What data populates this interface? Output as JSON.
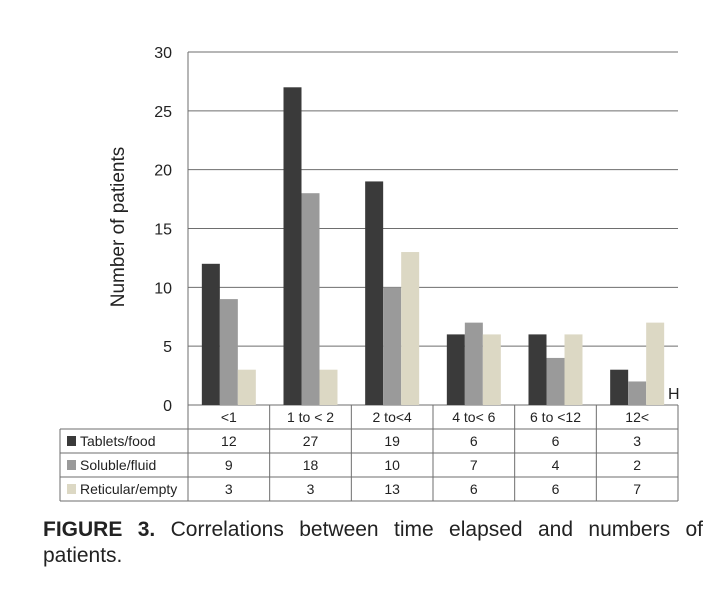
{
  "chart_data": {
    "type": "bar",
    "categories": [
      "<1",
      "1 to < 2",
      "2 to<4",
      "4 to< 6",
      "6 to <12",
      "12<"
    ],
    "series": [
      {
        "name": "Tablets/food",
        "values": [
          12,
          27,
          19,
          6,
          6,
          3
        ],
        "color": "#3a3a3a"
      },
      {
        "name": "Soluble/fluid",
        "values": [
          9,
          18,
          10,
          7,
          4,
          2
        ],
        "color": "#9a9a9a"
      },
      {
        "name": "Reticular/empty",
        "values": [
          3,
          3,
          13,
          6,
          6,
          7
        ],
        "color": "#dcd8c4"
      }
    ],
    "title": "",
    "xlabel": "H",
    "ylabel": "Number of patients",
    "ylim": [
      0,
      30
    ],
    "yticks": [
      0,
      5,
      10,
      15,
      20,
      25,
      30
    ],
    "grid": true,
    "legend": "data-table-below"
  },
  "caption": {
    "label": "FIGURE 3.",
    "text": "Correlations between time elapsed and numbers of patients."
  }
}
